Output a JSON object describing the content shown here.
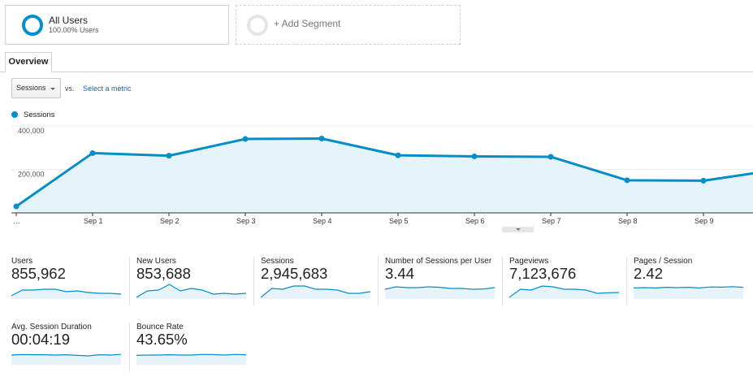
{
  "segments": {
    "all_users": {
      "name": "All Users",
      "percent": "100.00% Users"
    },
    "add_label": "+ Add Segment"
  },
  "tabs": {
    "overview": "Overview"
  },
  "metric_picker": {
    "selected": "Sessions",
    "vs_label": "vs.",
    "select_metric_link": "Select a metric"
  },
  "colors": {
    "accent": "#058dc7",
    "fill": "#e5f3fa",
    "card_fill": "#e6f3fa"
  },
  "chart_data": {
    "type": "area",
    "series": [
      {
        "name": "Sessions",
        "values": [
          30000,
          275000,
          263000,
          340000,
          342000,
          265000,
          260000,
          258000,
          150000,
          148000,
          182000
        ]
      }
    ],
    "x": [
      "…",
      "Sep 1",
      "Sep 2",
      "Sep 3",
      "Sep 4",
      "Sep 5",
      "Sep 6",
      "Sep 7",
      "Sep 8",
      "Sep 9",
      ""
    ],
    "y_ticks": [
      "400,000",
      "200,000"
    ],
    "ylim": [
      0,
      400000
    ],
    "grid": true
  },
  "scorecards": [
    {
      "label": "Users",
      "value": "855,962",
      "spark": [
        0.2,
        0.55,
        0.55,
        0.6,
        0.6,
        0.45,
        0.5,
        0.4,
        0.35,
        0.35,
        0.3
      ]
    },
    {
      "label": "New Users",
      "value": "853,688",
      "spark": [
        0.1,
        0.5,
        0.55,
        0.9,
        0.5,
        0.65,
        0.55,
        0.3,
        0.35,
        0.3,
        0.35
      ]
    },
    {
      "label": "Sessions",
      "value": "2,945,683",
      "spark": [
        0.1,
        0.65,
        0.6,
        0.8,
        0.8,
        0.6,
        0.6,
        0.55,
        0.35,
        0.35,
        0.45
      ]
    },
    {
      "label": "Number of Sessions per User",
      "value": "3.44",
      "spark": [
        0.6,
        0.75,
        0.7,
        0.7,
        0.75,
        0.72,
        0.65,
        0.65,
        0.6,
        0.62,
        0.7
      ]
    },
    {
      "label": "Pageviews",
      "value": "7,123,676",
      "spark": [
        0.1,
        0.6,
        0.55,
        0.8,
        0.75,
        0.6,
        0.6,
        0.55,
        0.35,
        0.38,
        0.4
      ]
    },
    {
      "label": "Pages / Session",
      "value": "2.42",
      "spark": [
        0.68,
        0.7,
        0.68,
        0.72,
        0.7,
        0.72,
        0.68,
        0.74,
        0.73,
        0.76,
        0.72
      ]
    },
    {
      "label": "Avg. Session Duration",
      "value": "00:04:19",
      "spark": [
        0.6,
        0.63,
        0.62,
        0.62,
        0.6,
        0.62,
        0.58,
        0.55,
        0.62,
        0.6,
        0.64
      ]
    },
    {
      "label": "Bounce Rate",
      "value": "43.65%",
      "spark": [
        0.58,
        0.6,
        0.6,
        0.62,
        0.6,
        0.6,
        0.64,
        0.63,
        0.6,
        0.64,
        0.62
      ]
    }
  ]
}
